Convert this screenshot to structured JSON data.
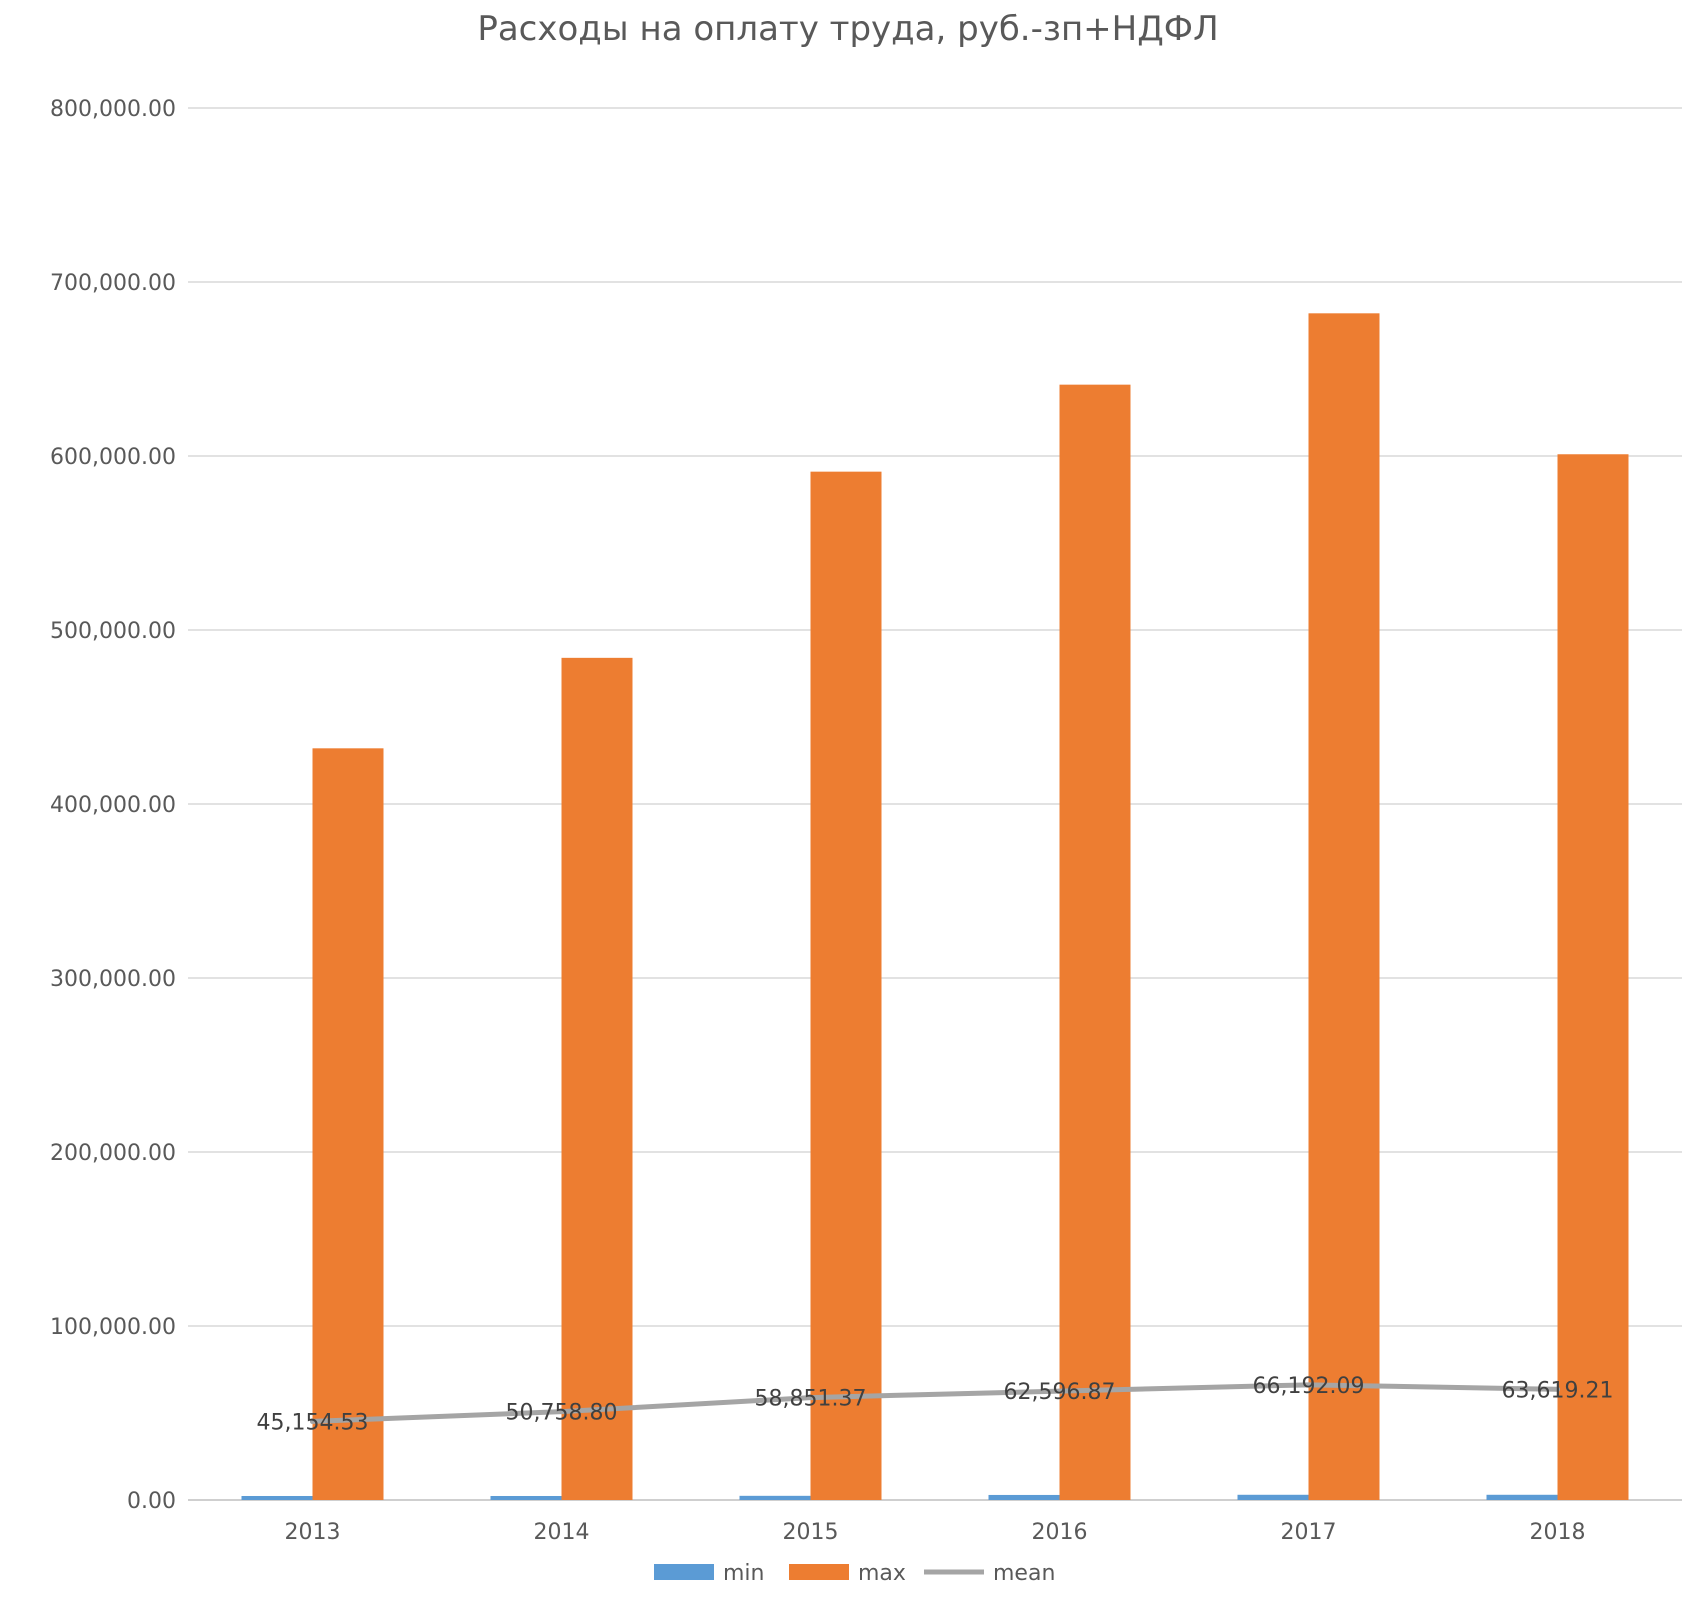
{
  "chart_data": {
    "type": "bar",
    "title": "Расходы на оплату труда, руб.-зп+НДФЛ",
    "categories": [
      "2013",
      "2014",
      "2015",
      "2016",
      "2017",
      "2018"
    ],
    "ylim": [
      0,
      800000
    ],
    "y_ticks": [
      0,
      100000,
      200000,
      300000,
      400000,
      500000,
      600000,
      700000,
      800000
    ],
    "y_tick_labels": [
      "0.00",
      "100,000.00",
      "200,000.00",
      "300,000.00",
      "400,000.00",
      "500,000.00",
      "600,000.00",
      "700,000.00",
      "800,000.00"
    ],
    "grid": true,
    "legend_position": "bottom",
    "series": [
      {
        "name": "min",
        "kind": "bar",
        "color": "#5B9BD5",
        "values": [
          2300,
          2300,
          2400,
          2900,
          3000,
          3000
        ]
      },
      {
        "name": "max",
        "kind": "bar",
        "color": "#ED7D31",
        "values": [
          432000,
          484000,
          591000,
          641000,
          682000,
          601000
        ]
      },
      {
        "name": "mean",
        "kind": "line",
        "color": "#A5A5A5",
        "values": [
          45154.53,
          50758.8,
          58851.37,
          62596.87,
          66192.09,
          63619.21
        ],
        "data_labels": [
          "45,154.53",
          "50,758.80",
          "58,851.37",
          "62,596.87",
          "66,192.09",
          "63,619.21"
        ]
      }
    ]
  }
}
